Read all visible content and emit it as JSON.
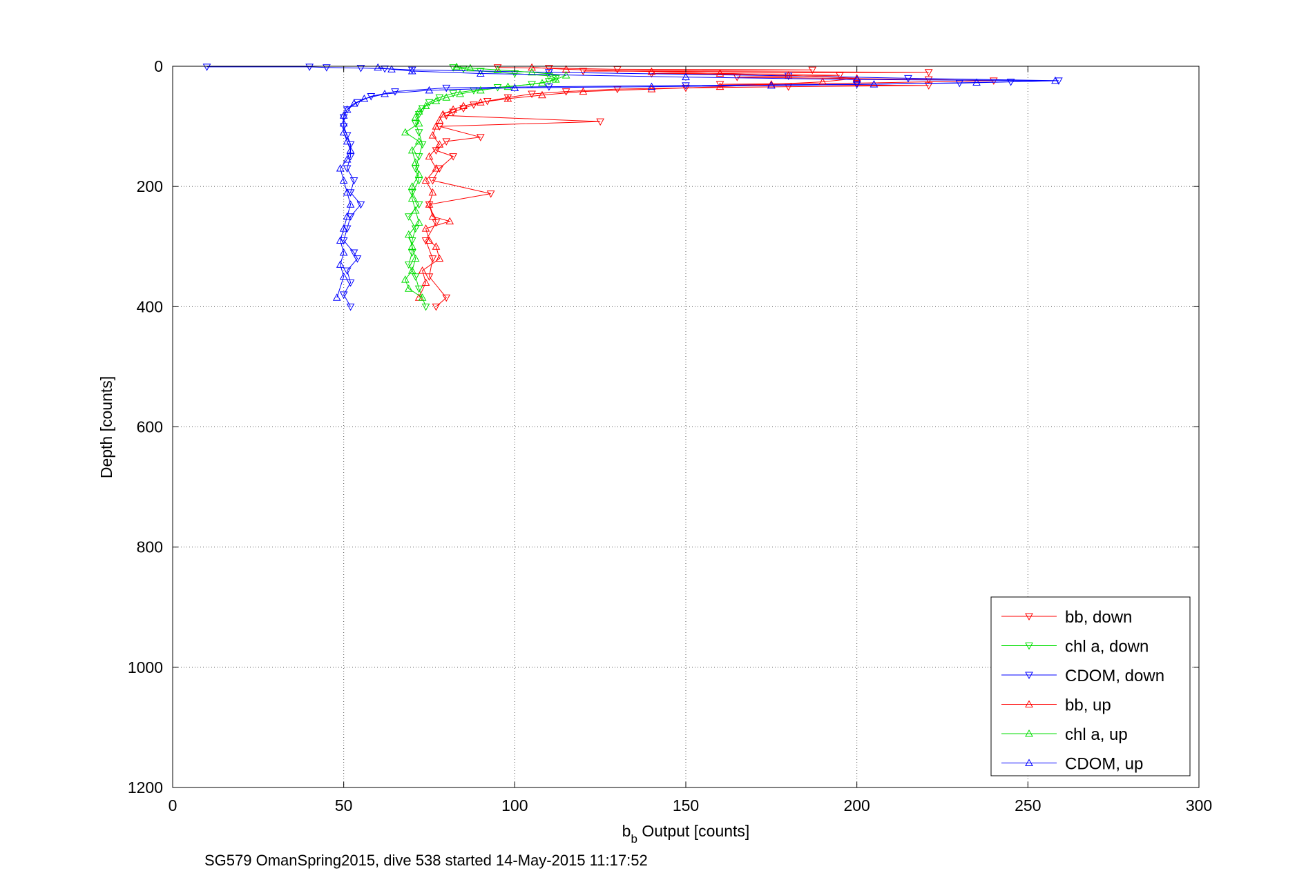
{
  "chart_data": {
    "type": "line",
    "xlabel_main": "b",
    "xlabel_sub": "b",
    "xlabel_rest": " Output [counts]",
    "ylabel": "Depth [counts]",
    "caption": "SG579 OmanSpring2015, dive 538 started 14-May-2015 11:17:52",
    "xlim": [
      0,
      300
    ],
    "ylim": [
      0,
      1200
    ],
    "y_reversed": true,
    "grid": true,
    "legend_position": "bottom-right",
    "x_ticks": [
      "0",
      "50",
      "100",
      "150",
      "200",
      "250",
      "300"
    ],
    "y_ticks": [
      "0",
      "200",
      "400",
      "600",
      "800",
      "1000",
      "1200"
    ],
    "series": [
      {
        "name": "bb, down",
        "color": "#ff0000",
        "marker": "triangle-down",
        "points": [
          [
            95,
            2
          ],
          [
            110,
            3
          ],
          [
            130,
            5
          ],
          [
            187,
            6
          ],
          [
            120,
            8
          ],
          [
            221,
            10
          ],
          [
            140,
            12
          ],
          [
            195,
            15
          ],
          [
            165,
            18
          ],
          [
            221,
            22
          ],
          [
            240,
            24
          ],
          [
            200,
            28
          ],
          [
            160,
            30
          ],
          [
            221,
            32
          ],
          [
            180,
            34
          ],
          [
            150,
            36
          ],
          [
            130,
            38
          ],
          [
            115,
            42
          ],
          [
            105,
            46
          ],
          [
            98,
            52
          ],
          [
            92,
            58
          ],
          [
            88,
            64
          ],
          [
            85,
            70
          ],
          [
            82,
            76
          ],
          [
            80,
            82
          ],
          [
            125,
            92
          ],
          [
            78,
            100
          ],
          [
            90,
            118
          ],
          [
            80,
            125
          ],
          [
            77,
            140
          ],
          [
            82,
            150
          ],
          [
            78,
            170
          ],
          [
            76,
            190
          ],
          [
            93,
            212
          ],
          [
            75,
            230
          ],
          [
            77,
            260
          ],
          [
            74,
            290
          ],
          [
            76,
            320
          ],
          [
            75,
            350
          ],
          [
            80,
            385
          ],
          [
            77,
            400
          ]
        ]
      },
      {
        "name": "chl a, down",
        "color": "#00dd00",
        "marker": "triangle-down",
        "points": [
          [
            82,
            2
          ],
          [
            85,
            4
          ],
          [
            90,
            8
          ],
          [
            100,
            12
          ],
          [
            110,
            16
          ],
          [
            112,
            20
          ],
          [
            110,
            25
          ],
          [
            105,
            30
          ],
          [
            95,
            35
          ],
          [
            88,
            40
          ],
          [
            82,
            45
          ],
          [
            78,
            52
          ],
          [
            75,
            60
          ],
          [
            73,
            70
          ],
          [
            72,
            80
          ],
          [
            71,
            95
          ],
          [
            72,
            110
          ],
          [
            73,
            130
          ],
          [
            72,
            150
          ],
          [
            71,
            170
          ],
          [
            72,
            190
          ],
          [
            70,
            210
          ],
          [
            72,
            230
          ],
          [
            69,
            250
          ],
          [
            71,
            270
          ],
          [
            70,
            290
          ],
          [
            70,
            310
          ],
          [
            69,
            330
          ],
          [
            71,
            350
          ],
          [
            72,
            370
          ],
          [
            74,
            400
          ]
        ]
      },
      {
        "name": "CDOM, down",
        "color": "#0000ff",
        "marker": "triangle-down",
        "points": [
          [
            10,
            1
          ],
          [
            40,
            1
          ],
          [
            45,
            2
          ],
          [
            55,
            3
          ],
          [
            62,
            4
          ],
          [
            70,
            6
          ],
          [
            110,
            10
          ],
          [
            180,
            16
          ],
          [
            215,
            20
          ],
          [
            259,
            24
          ],
          [
            245,
            26
          ],
          [
            230,
            28
          ],
          [
            200,
            30
          ],
          [
            150,
            32
          ],
          [
            110,
            34
          ],
          [
            80,
            36
          ],
          [
            65,
            42
          ],
          [
            58,
            50
          ],
          [
            54,
            60
          ],
          [
            51,
            72
          ],
          [
            50,
            85
          ],
          [
            50,
            100
          ],
          [
            51,
            115
          ],
          [
            52,
            130
          ],
          [
            52,
            150
          ],
          [
            51,
            170
          ],
          [
            53,
            190
          ],
          [
            52,
            210
          ],
          [
            55,
            230
          ],
          [
            52,
            250
          ],
          [
            51,
            270
          ],
          [
            50,
            290
          ],
          [
            53,
            310
          ],
          [
            54,
            320
          ],
          [
            51,
            340
          ],
          [
            52,
            360
          ],
          [
            50,
            380
          ],
          [
            52,
            400
          ]
        ]
      },
      {
        "name": "bb, up",
        "color": "#ff0000",
        "marker": "triangle-up",
        "points": [
          [
            105,
            2
          ],
          [
            115,
            5
          ],
          [
            140,
            9
          ],
          [
            160,
            12
          ],
          [
            180,
            15
          ],
          [
            200,
            20
          ],
          [
            190,
            26
          ],
          [
            175,
            30
          ],
          [
            160,
            34
          ],
          [
            140,
            38
          ],
          [
            120,
            42
          ],
          [
            108,
            48
          ],
          [
            98,
            54
          ],
          [
            90,
            60
          ],
          [
            85,
            66
          ],
          [
            82,
            72
          ],
          [
            79,
            80
          ],
          [
            78,
            90
          ],
          [
            77,
            100
          ],
          [
            76,
            115
          ],
          [
            78,
            130
          ],
          [
            75,
            150
          ],
          [
            77,
            170
          ],
          [
            74,
            190
          ],
          [
            76,
            210
          ],
          [
            75,
            230
          ],
          [
            76,
            250
          ],
          [
            81,
            258
          ],
          [
            74,
            270
          ],
          [
            75,
            290
          ],
          [
            77,
            300
          ],
          [
            78,
            320
          ],
          [
            73,
            340
          ],
          [
            74,
            360
          ],
          [
            72,
            385
          ]
        ]
      },
      {
        "name": "chl a, up",
        "color": "#00dd00",
        "marker": "triangle-up",
        "points": [
          [
            83,
            1
          ],
          [
            87,
            3
          ],
          [
            95,
            6
          ],
          [
            105,
            10
          ],
          [
            115,
            15
          ],
          [
            112,
            22
          ],
          [
            108,
            28
          ],
          [
            98,
            34
          ],
          [
            90,
            40
          ],
          [
            84,
            46
          ],
          [
            80,
            52
          ],
          [
            77,
            58
          ],
          [
            74,
            66
          ],
          [
            72,
            75
          ],
          [
            71,
            85
          ],
          [
            72,
            95
          ],
          [
            68,
            110
          ],
          [
            72,
            125
          ],
          [
            70,
            140
          ],
          [
            71,
            160
          ],
          [
            72,
            180
          ],
          [
            70,
            200
          ],
          [
            70,
            220
          ],
          [
            71,
            240
          ],
          [
            72,
            260
          ],
          [
            69,
            280
          ],
          [
            70,
            300
          ],
          [
            71,
            320
          ],
          [
            70,
            340
          ],
          [
            68,
            355
          ],
          [
            69,
            370
          ],
          [
            73,
            385
          ]
        ]
      },
      {
        "name": "CDOM, up",
        "color": "#0000ff",
        "marker": "triangle-up",
        "points": [
          [
            60,
            2
          ],
          [
            64,
            5
          ],
          [
            70,
            8
          ],
          [
            90,
            12
          ],
          [
            150,
            18
          ],
          [
            200,
            22
          ],
          [
            258,
            24
          ],
          [
            235,
            27
          ],
          [
            205,
            30
          ],
          [
            175,
            32
          ],
          [
            140,
            34
          ],
          [
            100,
            36
          ],
          [
            75,
            40
          ],
          [
            62,
            46
          ],
          [
            56,
            54
          ],
          [
            53,
            62
          ],
          [
            51,
            72
          ],
          [
            50,
            82
          ],
          [
            50,
            95
          ],
          [
            50,
            110
          ],
          [
            51,
            125
          ],
          [
            52,
            140
          ],
          [
            51,
            155
          ],
          [
            49,
            170
          ],
          [
            50,
            190
          ],
          [
            51,
            210
          ],
          [
            52,
            230
          ],
          [
            51,
            250
          ],
          [
            50,
            270
          ],
          [
            49,
            290
          ],
          [
            50,
            310
          ],
          [
            49,
            330
          ],
          [
            50,
            350
          ],
          [
            48,
            385
          ]
        ]
      }
    ]
  }
}
